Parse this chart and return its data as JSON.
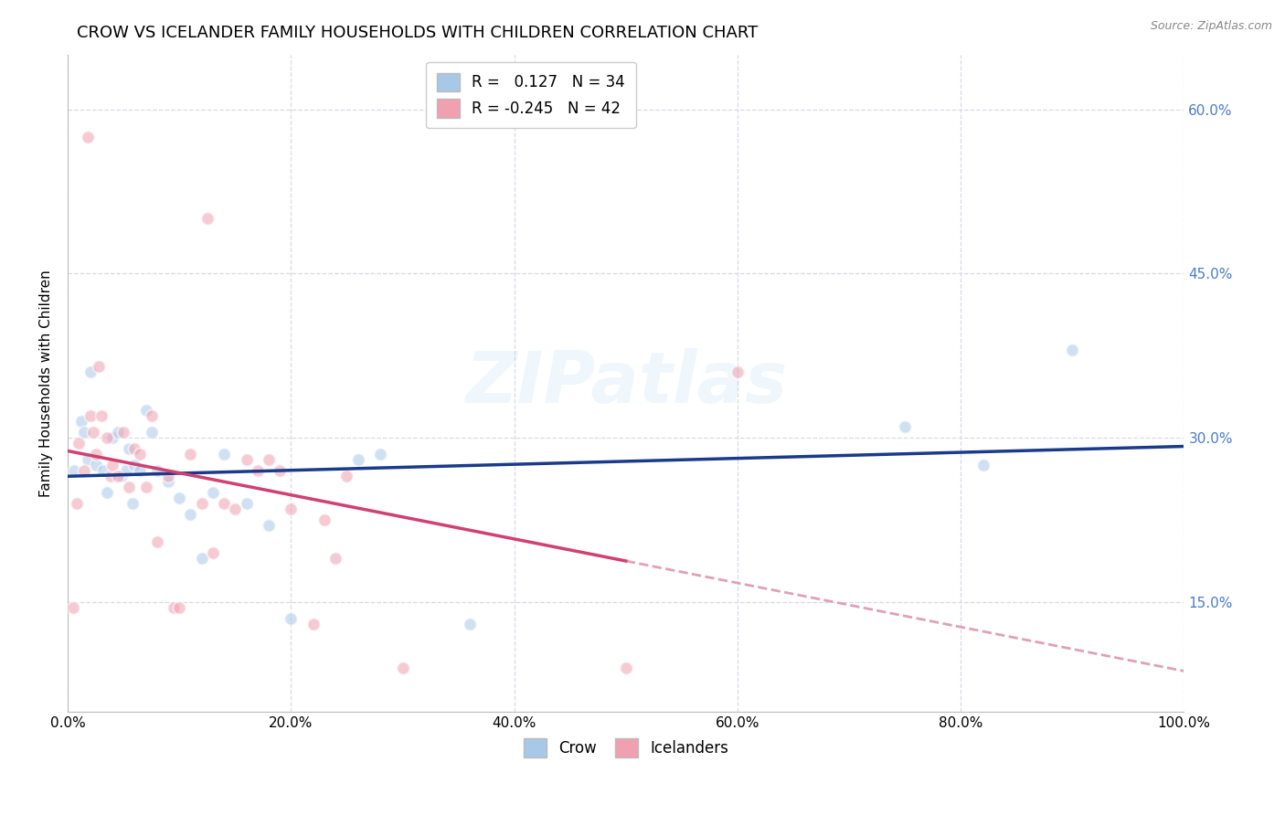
{
  "title": "CROW VS ICELANDER FAMILY HOUSEHOLDS WITH CHILDREN CORRELATION CHART",
  "source": "Source: ZipAtlas.com",
  "ylabel": "Family Households with Children",
  "crow_R": 0.127,
  "crow_N": 34,
  "icelander_R": -0.245,
  "icelander_N": 42,
  "crow_color": "#a8c8e8",
  "icelander_color": "#f0a0b0",
  "crow_line_color": "#1a3a8a",
  "icelander_line_color": "#d04070",
  "icelander_dash_color": "#e0a0b8",
  "watermark": "ZIPatlas",
  "background_color": "#ffffff",
  "grid_color": "#d8d8e8",
  "ytick_color": "#4a7cc7",
  "crow_x": [
    0.6,
    1.2,
    1.5,
    1.8,
    2.0,
    2.5,
    3.2,
    3.5,
    4.0,
    4.5,
    4.8,
    5.2,
    5.5,
    5.8,
    6.0,
    6.5,
    7.0,
    7.5,
    8.0,
    9.0,
    10.0,
    11.0,
    12.0,
    13.0,
    14.0,
    16.0,
    18.0,
    20.0,
    26.0,
    28.0,
    36.0,
    75.0,
    82.0,
    90.0
  ],
  "crow_y": [
    27.0,
    31.5,
    30.5,
    28.0,
    36.0,
    27.5,
    27.0,
    25.0,
    30.0,
    30.5,
    26.5,
    27.0,
    29.0,
    24.0,
    27.5,
    27.0,
    32.5,
    30.5,
    27.0,
    26.0,
    24.5,
    23.0,
    19.0,
    25.0,
    28.5,
    24.0,
    22.0,
    13.5,
    28.0,
    28.5,
    13.0,
    31.0,
    27.5,
    38.0
  ],
  "icelander_x": [
    0.5,
    0.8,
    1.0,
    1.5,
    1.8,
    2.0,
    2.3,
    2.5,
    2.8,
    3.0,
    3.5,
    3.8,
    4.0,
    4.5,
    5.0,
    5.5,
    6.0,
    6.5,
    7.0,
    7.5,
    8.0,
    9.0,
    9.5,
    10.0,
    11.0,
    12.0,
    12.5,
    13.0,
    14.0,
    15.0,
    16.0,
    17.0,
    18.0,
    19.0,
    20.0,
    22.0,
    23.0,
    24.0,
    25.0,
    30.0,
    50.0,
    60.0
  ],
  "icelander_y": [
    14.5,
    24.0,
    29.5,
    27.0,
    57.5,
    32.0,
    30.5,
    28.5,
    36.5,
    32.0,
    30.0,
    26.5,
    27.5,
    26.5,
    30.5,
    25.5,
    29.0,
    28.5,
    25.5,
    32.0,
    20.5,
    26.5,
    14.5,
    14.5,
    28.5,
    24.0,
    50.0,
    19.5,
    24.0,
    23.5,
    28.0,
    27.0,
    28.0,
    27.0,
    23.5,
    13.0,
    22.5,
    19.0,
    26.5,
    9.0,
    9.0,
    36.0
  ],
  "xlim": [
    0,
    100
  ],
  "ylim": [
    5,
    65
  ],
  "yticks": [
    15.0,
    30.0,
    45.0,
    60.0
  ],
  "xticks": [
    0.0,
    20.0,
    40.0,
    60.0,
    80.0,
    100.0
  ],
  "title_fontsize": 13,
  "axis_label_fontsize": 11,
  "tick_fontsize": 11,
  "legend_fontsize": 12,
  "marker_size": 100,
  "marker_alpha": 0.55,
  "marker_edge": "white",
  "marker_lw": 1.5
}
